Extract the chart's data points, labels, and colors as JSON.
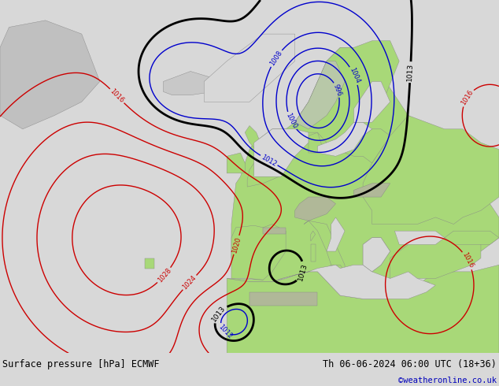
{
  "title_left": "Surface pressure [hPa] ECMWF",
  "title_right": "Th 06-06-2024 06:00 UTC (18+36)",
  "credit": "©weatheronline.co.uk",
  "land_color": "#a8d878",
  "sea_color": "#d8d8d8",
  "mountain_color": "#c8c8b0",
  "figsize": [
    6.34,
    4.9
  ],
  "dpi": 100,
  "bottom_bar_color": "#d8d8d8",
  "bottom_text_color": "#000000",
  "credit_color": "#0000bb",
  "blue_color": "#0000cc",
  "red_color": "#cc0000",
  "black_color": "#000000"
}
